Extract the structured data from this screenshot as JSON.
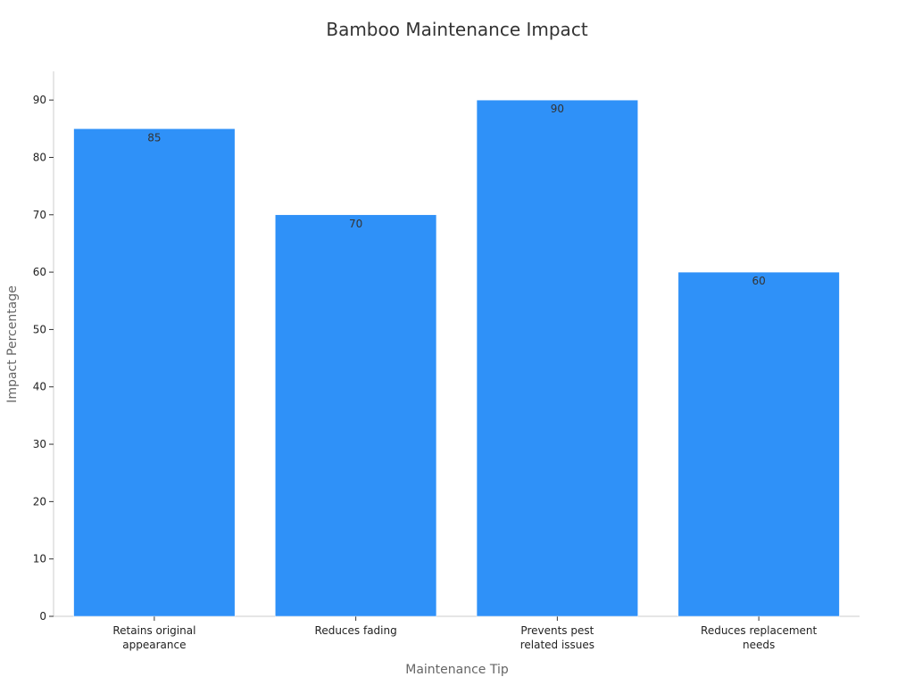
{
  "chart_data": {
    "type": "bar",
    "title": "Bamboo Maintenance Impact",
    "xlabel": "Maintenance Tip",
    "ylabel": "Impact Percentage",
    "categories": [
      [
        "Retains original",
        "appearance"
      ],
      [
        "Reduces fading"
      ],
      [
        "Prevents pest",
        "related issues"
      ],
      [
        "Reduces replacement",
        "needs"
      ]
    ],
    "values": [
      85,
      70,
      90,
      60
    ],
    "value_labels": [
      "85",
      "70",
      "90",
      "60"
    ],
    "ylim": [
      0,
      95
    ],
    "yticks": [
      0,
      10,
      20,
      30,
      40,
      50,
      60,
      70,
      80,
      90
    ],
    "grid": false,
    "legend": "none"
  },
  "colors": {
    "bar": "#2f91f8",
    "bar_edge": "#ffffff",
    "axis": "#cccccc"
  }
}
